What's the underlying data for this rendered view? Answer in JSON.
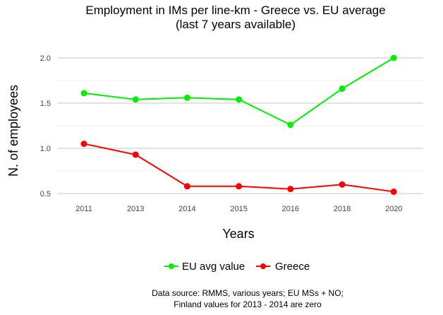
{
  "chart_data": {
    "type": "line",
    "title": "Employment in IMs per line-km - Greece vs. EU average",
    "subtitle": "(last 7 years available)",
    "xlabel": "Years",
    "ylabel": "N. of employees",
    "categories": [
      "2011",
      "2013",
      "2014",
      "2015",
      "2016",
      "2018",
      "2020"
    ],
    "yticks": [
      "0.5",
      "1.0",
      "1.5",
      "2.0"
    ],
    "ylim": [
      0.49,
      2.09
    ],
    "grid": true,
    "legend_position": "bottom",
    "series": [
      {
        "name": "EU avg value",
        "color": "#00ee00",
        "values": [
          1.61,
          1.54,
          1.56,
          1.54,
          1.26,
          1.66,
          2.0
        ]
      },
      {
        "name": "Greece",
        "color": "#ff0000",
        "values": [
          1.05,
          0.93,
          0.58,
          0.58,
          0.55,
          0.6,
          0.52
        ]
      }
    ],
    "caption_lines": [
      "Data source: RMMS, various years; EU MSs + NO;",
      "Finland values for 2013 - 2014 are zero"
    ]
  }
}
